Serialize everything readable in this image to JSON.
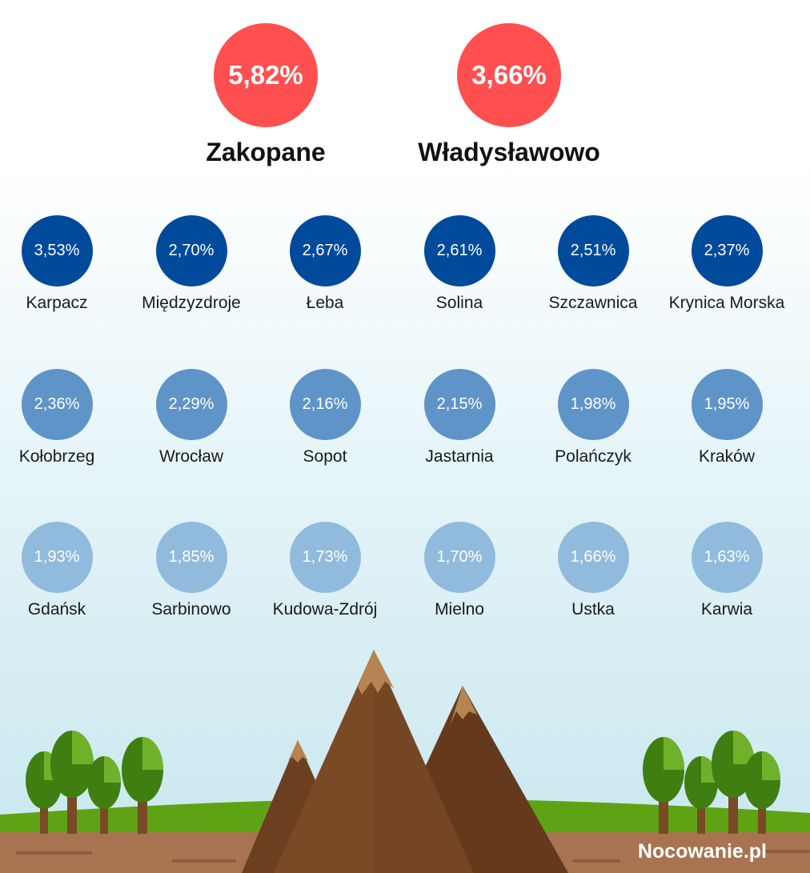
{
  "top": [
    {
      "value": "5,82%",
      "name": "Zakopane"
    },
    {
      "value": "3,66%",
      "name": "Władysławowo"
    }
  ],
  "rows": [
    [
      {
        "value": "3,53%",
        "name": "Karpacz"
      },
      {
        "value": "2,70%",
        "name": "Międzyzdroje"
      },
      {
        "value": "2,67%",
        "name": "Łeba"
      },
      {
        "value": "2,61%",
        "name": "Solina"
      },
      {
        "value": "2,51%",
        "name": "Szczawnica"
      },
      {
        "value": "2,37%",
        "name": "Krynica Morska"
      }
    ],
    [
      {
        "value": "2,36%",
        "name": "Kołobrzeg"
      },
      {
        "value": "2,29%",
        "name": "Wrocław"
      },
      {
        "value": "2,16%",
        "name": "Sopot"
      },
      {
        "value": "2,15%",
        "name": "Jastarnia"
      },
      {
        "value": "1,98%",
        "name": "Polańczyk"
      },
      {
        "value": "1,95%",
        "name": "Kraków"
      }
    ],
    [
      {
        "value": "1,93%",
        "name": "Gdańsk"
      },
      {
        "value": "1,85%",
        "name": "Sarbinowo"
      },
      {
        "value": "1,73%",
        "name": "Kudowa-Zdrój"
      },
      {
        "value": "1,70%",
        "name": "Mielno"
      },
      {
        "value": "1,66%",
        "name": "Ustka"
      },
      {
        "value": "1,63%",
        "name": "Karwia"
      }
    ]
  ],
  "colors": {
    "top": "#ff4f4f",
    "tier1": "#004a9c",
    "tier2": "#5f94c8",
    "tier3": "#91bbdc"
  },
  "logo": "Nocowanie.pl"
}
